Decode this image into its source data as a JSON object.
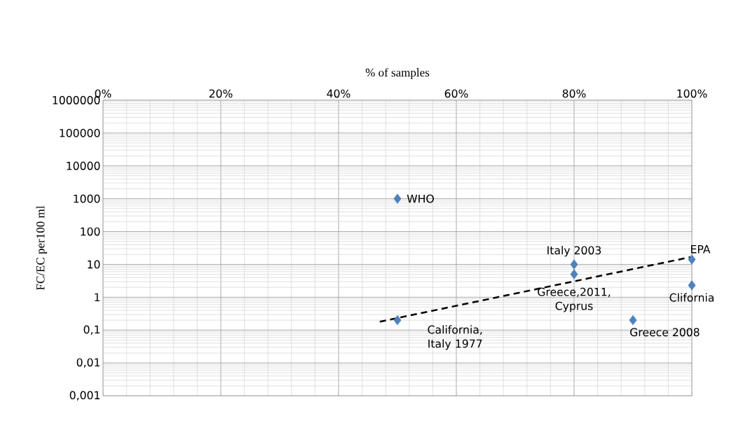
{
  "chart_data": {
    "type": "scatter",
    "xlabel": "% of samples",
    "ylabel": "FC/EC per100 ml",
    "xlim": [
      0,
      100
    ],
    "xticks": [
      {
        "value": 0,
        "label": "0%"
      },
      {
        "value": 20,
        "label": "20%"
      },
      {
        "value": 40,
        "label": "40%"
      },
      {
        "value": 60,
        "label": "60%"
      },
      {
        "value": 80,
        "label": "80%"
      },
      {
        "value": 100,
        "label": "100%"
      }
    ],
    "ylim": [
      0.001,
      1000000
    ],
    "yticks": [
      {
        "value": 0.001,
        "label": "0,001"
      },
      {
        "value": 0.01,
        "label": "0,01"
      },
      {
        "value": 0.1,
        "label": "0,1"
      },
      1,
      10,
      100,
      1000,
      10000,
      100000,
      1000000
    ],
    "log": "y",
    "grid": true,
    "series": [
      {
        "type": "scatter",
        "color": "#4f81bd",
        "marker": "diamond",
        "x": [
          50,
          50,
          80,
          80,
          90,
          100,
          100
        ],
        "values": [
          1000,
          0.2,
          10,
          5,
          0.2,
          14,
          2.3
        ]
      },
      {
        "type": "line",
        "color": "#000000",
        "line_style": "dashed",
        "marker": "none",
        "x": [
          47,
          100
        ],
        "values": [
          0.18,
          17
        ]
      }
    ],
    "annotations": [
      {
        "text": "WHO",
        "x": 50,
        "y": 1000
      },
      {
        "text": "Italy 2003",
        "x": 80,
        "y": 10
      },
      {
        "text": "EPA",
        "x": 100,
        "y": 14
      },
      {
        "text": "Greece,2011, Cyprus",
        "x": 80,
        "y": 5
      },
      {
        "text": "Clifornia",
        "x": 100,
        "y": 2.3
      },
      {
        "text": "California, Italy 1977",
        "x": 50,
        "y": 0.2
      },
      {
        "text": "Greece 2008",
        "x": 90,
        "y": 0.2
      }
    ]
  }
}
